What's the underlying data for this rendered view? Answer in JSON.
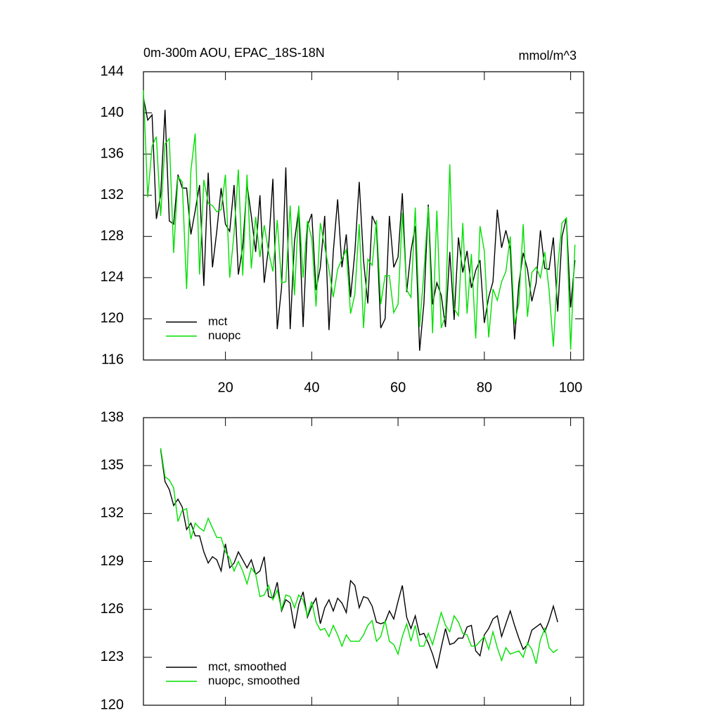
{
  "chart_data": [
    {
      "type": "line",
      "title": "0m-300m AOU, EPAC_18S-18N",
      "units": "mmol/m^3",
      "xlim": [
        1,
        103
      ],
      "ylim": [
        116,
        144
      ],
      "xticks": [
        20,
        40,
        60,
        80,
        100
      ],
      "xtick_labels": true,
      "yticks": [
        116,
        120,
        124,
        128,
        132,
        136,
        140,
        144
      ],
      "legend": "lower left",
      "x": [
        1,
        2,
        3,
        4,
        5,
        6,
        7,
        8,
        9,
        10,
        11,
        12,
        13,
        14,
        15,
        16,
        17,
        18,
        19,
        20,
        21,
        22,
        23,
        24,
        25,
        26,
        27,
        28,
        29,
        30,
        31,
        32,
        33,
        34,
        35,
        36,
        37,
        38,
        39,
        40,
        41,
        42,
        43,
        44,
        45,
        46,
        47,
        48,
        49,
        50,
        51,
        52,
        53,
        54,
        55,
        56,
        57,
        58,
        59,
        60,
        61,
        62,
        63,
        64,
        65,
        66,
        67,
        68,
        69,
        70,
        71,
        72,
        73,
        74,
        75,
        76,
        77,
        78,
        79,
        80,
        81,
        82,
        83,
        84,
        85,
        86,
        87,
        88,
        89,
        90,
        91,
        92,
        93,
        94,
        95,
        96,
        97,
        98,
        99,
        100,
        101
      ],
      "series": [
        {
          "name": "mct",
          "color": "#000000",
          "values": [
            141.5,
            139.3,
            139.8,
            129.7,
            132,
            140.3,
            129.5,
            129.2,
            134,
            132.7,
            132.7,
            128.2,
            130.5,
            133,
            123.2,
            134.2,
            125,
            128.5,
            132.7,
            129.2,
            128.5,
            133,
            124.3,
            127,
            133.1,
            130,
            126.5,
            132,
            123.5,
            127,
            133.6,
            119,
            123,
            134.7,
            119,
            127.5,
            130.7,
            119.2,
            129,
            130.2,
            122.8,
            125,
            130,
            118.9,
            126.5,
            131.6,
            125,
            128.2,
            122.1,
            126.5,
            133.3,
            125.7,
            121.5,
            130,
            129,
            119.1,
            120,
            130,
            125,
            126,
            132.2,
            122.6,
            126.6,
            129,
            116.9,
            121.5,
            131.1,
            121.4,
            123.5,
            122.3,
            119.2,
            126.5,
            119.9,
            127.9,
            124.5,
            126.6,
            123,
            124.7,
            125.7,
            119.6,
            122.1,
            123.6,
            130.6,
            126.9,
            128.6,
            126.8,
            118,
            123.4,
            126.4,
            124.8,
            121.7,
            123.5,
            128.6,
            124.9,
            124.8,
            127.9,
            120.7,
            128,
            129.8,
            121.1,
            125.7
          ]
        },
        {
          "name": "nuopc",
          "color": "#00e000",
          "values": [
            142.2,
            131.8,
            136.8,
            137.7,
            130,
            137,
            137.5,
            126.4,
            133.8,
            133.3,
            122.9,
            134.4,
            138,
            124.3,
            133.5,
            131.2,
            131,
            130.4,
            130.6,
            134,
            124,
            128.3,
            134.5,
            124.2,
            134,
            124.9,
            129.9,
            126,
            129.1,
            126.5,
            124.6,
            129.6,
            123.5,
            123.6,
            131,
            122.3,
            131,
            124,
            129.5,
            127.8,
            121.2,
            129.3,
            127,
            124.8,
            122.1,
            124.8,
            125.8,
            126.7,
            120.5,
            122.4,
            129.2,
            119.1,
            125.8,
            125.2,
            129.6,
            121.4,
            124.2,
            124.2,
            120.6,
            121.4,
            130.3,
            122.8,
            122.1,
            130.8,
            119.2,
            124.6,
            130.9,
            118.6,
            130.5,
            119.1,
            120.3,
            135,
            121,
            120.3,
            129.3,
            120.5,
            126.3,
            118.1,
            129,
            126.6,
            118.2,
            122.9,
            121.8,
            123.6,
            124.6,
            128,
            119.5,
            121.5,
            129.2,
            120.2,
            124.5,
            125,
            124,
            126.5,
            122.8,
            117.3,
            125,
            129.3,
            129.8,
            117,
            127.2
          ]
        }
      ]
    },
    {
      "type": "line",
      "xlim": [
        1,
        103
      ],
      "ylim": [
        120,
        138
      ],
      "xticks": [
        20,
        40,
        60,
        80,
        100
      ],
      "xtick_labels": false,
      "yticks": [
        120,
        123,
        126,
        129,
        132,
        135,
        138
      ],
      "legend": "lower left",
      "x": [
        5,
        6,
        7,
        8,
        9,
        10,
        11,
        12,
        13,
        14,
        15,
        16,
        17,
        18,
        19,
        20,
        21,
        22,
        23,
        24,
        25,
        26,
        27,
        28,
        29,
        30,
        31,
        32,
        33,
        34,
        35,
        36,
        37,
        38,
        39,
        40,
        41,
        42,
        43,
        44,
        45,
        46,
        47,
        48,
        49,
        50,
        51,
        52,
        53,
        54,
        55,
        56,
        57,
        58,
        59,
        60,
        61,
        62,
        63,
        64,
        65,
        66,
        67,
        68,
        69,
        70,
        71,
        72,
        73,
        74,
        75,
        76,
        77,
        78,
        79,
        80,
        81,
        82,
        83,
        84,
        85,
        86,
        87,
        88,
        89,
        90,
        91,
        92,
        93,
        94,
        95,
        96,
        97
      ],
      "series": [
        {
          "name": "mct, smoothed",
          "color": "#000000",
          "values": [
            136.0,
            134.0,
            133.5,
            132.5,
            132.9,
            132.4,
            131.0,
            131.4,
            130.6,
            130.6,
            129.6,
            128.9,
            129.3,
            129.1,
            128.4,
            130.1,
            128.6,
            128.9,
            129.6,
            129.1,
            128.6,
            129.1,
            128.2,
            128.4,
            129.3,
            126.8,
            126.7,
            127.7,
            125.9,
            126.6,
            126.4,
            124.8,
            126.3,
            127.1,
            125.5,
            126.2,
            126.7,
            125.1,
            126.1,
            126.6,
            125.9,
            126.7,
            126.4,
            125.8,
            127.8,
            127.5,
            126.1,
            126.8,
            126.7,
            126.2,
            125.2,
            125.1,
            125.2,
            125.9,
            125.4,
            126.5,
            127.5,
            125.5,
            124.8,
            125.6,
            124.4,
            124.5,
            123.9,
            123.2,
            122.3,
            123.6,
            124.8,
            123.8,
            123.9,
            124.2,
            124.2,
            124.9,
            125.0,
            123.4,
            123.1,
            124.4,
            124.8,
            125.4,
            125.6,
            124.3,
            125.1,
            125.9,
            125.0,
            124.2,
            123.5,
            123.8,
            124.7,
            124.9,
            125.1,
            124.6,
            125.3,
            126.2,
            125.2
          ]
        },
        {
          "name": "nuopc, smoothed",
          "color": "#00e000",
          "values": [
            136.1,
            134.3,
            134.1,
            133.6,
            131.5,
            132.2,
            132.3,
            130.4,
            131.4,
            131.1,
            130.9,
            131.7,
            131.1,
            130.5,
            130.5,
            129.6,
            129.2,
            128.4,
            129.0,
            128.4,
            127.6,
            128.6,
            128.2,
            126.8,
            126.9,
            127.5,
            126.6,
            127.2,
            126.0,
            126.9,
            126.8,
            126.1,
            126.9,
            126.6,
            125.6,
            126.5,
            125.2,
            124.7,
            124.8,
            124.3,
            125.0,
            124.4,
            123.7,
            124.4,
            124.0,
            124.0,
            124.0,
            124.4,
            125.0,
            125.3,
            124.0,
            124.3,
            125.3,
            124.0,
            123.8,
            123.2,
            124.3,
            125.1,
            124.0,
            125.0,
            123.7,
            123.7,
            124.5,
            123.8,
            124.8,
            125.8,
            125.0,
            124.6,
            125.6,
            125.2,
            124.5,
            124.4,
            123.7,
            123.7,
            124.0,
            124.3,
            123.5,
            124.6,
            123.6,
            122.8,
            123.6,
            123.2,
            123.3,
            123.4,
            123.0,
            123.9,
            123.5,
            122.6,
            124.1,
            124.8,
            123.6,
            123.3,
            123.5
          ]
        }
      ]
    }
  ]
}
